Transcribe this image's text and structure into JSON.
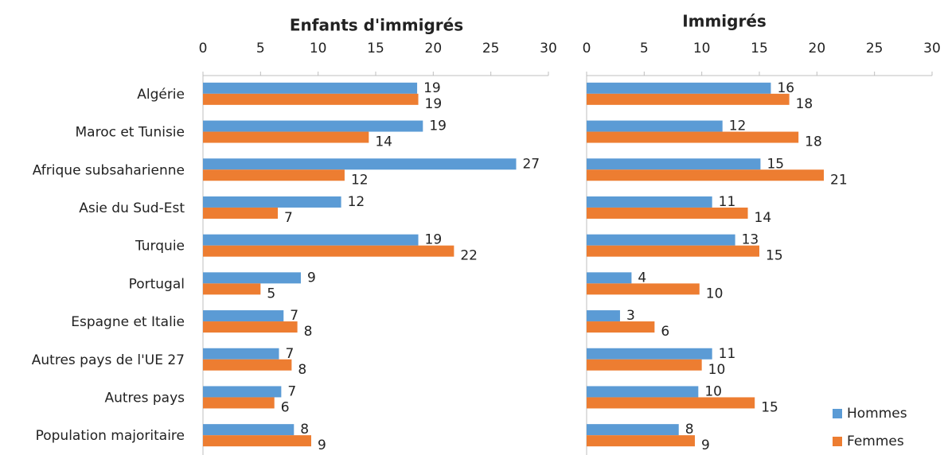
{
  "chart_data": [
    {
      "type": "bar",
      "orientation": "horizontal",
      "title": "Enfants d'immigrés",
      "categories": [
        "Algérie",
        "Maroc et Tunisie",
        "Afrique subsaharienne",
        "Asie du Sud-Est",
        "Turquie",
        "Portugal",
        "Espagne et Italie",
        "Autres pays de l'UE 27",
        "Autres pays",
        "Population majoritaire"
      ],
      "series": [
        {
          "color": "#5b9bd5",
          "values": [
            18.6,
            19.1,
            27.2,
            12.0,
            18.7,
            8.5,
            7.0,
            6.6,
            6.8,
            7.9
          ],
          "value_labels": [
            "19",
            "19",
            "27",
            "12",
            "19",
            "9",
            "7",
            "7",
            "7",
            "8"
          ]
        },
        {
          "color": "#ed7d31",
          "values": [
            18.7,
            14.4,
            12.3,
            6.5,
            21.8,
            5.0,
            8.2,
            7.7,
            6.2,
            9.4
          ],
          "value_labels": [
            "19",
            "14",
            "12",
            "7",
            "22",
            "5",
            "8",
            "8",
            "6",
            "9"
          ]
        }
      ],
      "xlim": [
        0,
        30
      ],
      "xticks": [
        0,
        5,
        10,
        15,
        20,
        25,
        30
      ]
    },
    {
      "type": "bar",
      "orientation": "horizontal",
      "title": "Immigrés",
      "series": [
        {
          "name": "Hommes",
          "color": "#5b9bd5",
          "values": [
            16.0,
            11.8,
            15.1,
            10.9,
            12.9,
            3.9,
            2.9,
            10.9,
            9.7,
            8.0
          ],
          "value_labels": [
            "16",
            "12",
            "15",
            "11",
            "13",
            "4",
            "3",
            "11",
            "10",
            "8"
          ]
        },
        {
          "name": "Femmes",
          "color": "#ed7d31",
          "values": [
            17.6,
            18.4,
            20.6,
            14.0,
            15.0,
            9.8,
            5.9,
            10.0,
            14.6,
            9.4
          ],
          "value_labels": [
            "18",
            "18",
            "21",
            "14",
            "15",
            "10",
            "6",
            "10",
            "15",
            "9"
          ]
        }
      ],
      "xlim": [
        0,
        30
      ],
      "xticks": [
        0,
        5,
        10,
        15,
        20,
        25,
        30
      ],
      "legend": "lower right"
    }
  ]
}
